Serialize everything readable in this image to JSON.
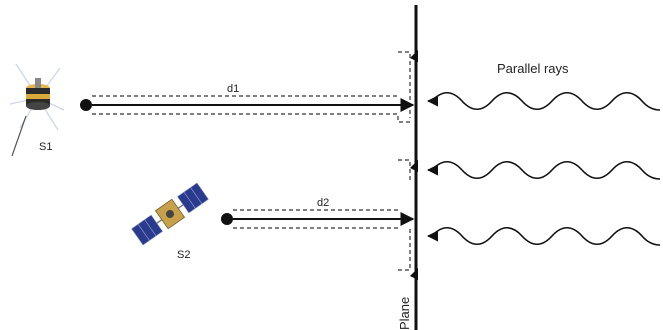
{
  "labels": {
    "parallel_rays": "Parallel rays",
    "d1": "d1",
    "d2": "d2",
    "s1": "S1",
    "s2": "S2",
    "plane": "Plane"
  },
  "colors": {
    "line": "#111111",
    "dashed": "#333333",
    "satellite_body": "#c8a24a",
    "satellite_panel": "#2a3a8c",
    "satellite_dark": "#333333"
  },
  "icons": {
    "s1": "satellite-icon",
    "s2": "satellite-with-solar-panels-icon"
  }
}
